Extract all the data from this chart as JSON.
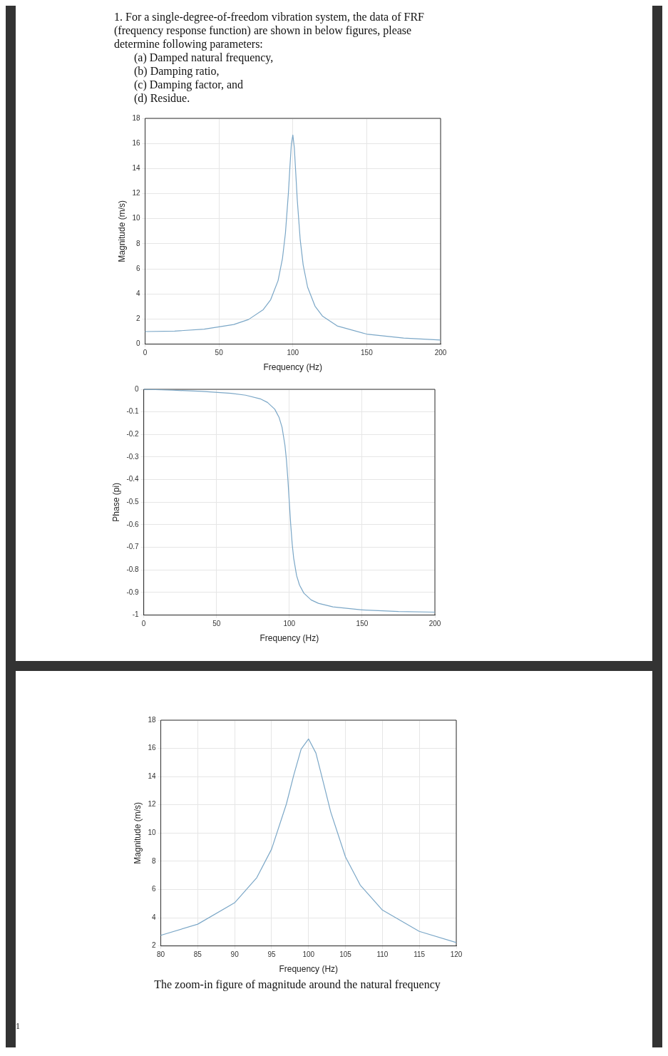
{
  "chart_data": [
    {
      "type": "line",
      "xlabel": "Frequency (Hz)",
      "ylabel": "Magnitude (m/s)",
      "annotations": [
        "1. For a single-degree-of-freedom vibration system, the data of FRF (frequency response function) are shown in below figures, please determine following parameters:",
        "(a) Damped natural frequency,",
        "(b) Damping ratio,",
        "(c) Damping factor, and",
        "(d) Residue."
      ],
      "x": [
        0,
        20,
        40,
        60,
        70,
        80,
        85,
        90,
        93,
        95,
        97,
        98,
        99,
        100,
        101,
        102,
        103,
        105,
        107,
        110,
        115,
        120,
        130,
        150,
        175,
        200
      ],
      "series": [
        {
          "color": "#7ba7c7",
          "values": [
            1,
            1.04,
            1.19,
            1.56,
            1.96,
            2.75,
            3.54,
            5.06,
            6.84,
            8.86,
            12.05,
            14.1,
            15.95,
            16.67,
            15.67,
            13.6,
            11.5,
            8.31,
            6.31,
            4.54,
            3.03,
            2.24,
            1.45,
            0.8,
            0.48,
            0.33
          ]
        }
      ],
      "xlim": [
        0,
        200
      ],
      "xticks": [
        0,
        50,
        100,
        150,
        200
      ],
      "ylim": [
        0,
        18
      ],
      "yticks": [
        0,
        2,
        4,
        6,
        8,
        10,
        12,
        14,
        16,
        18
      ],
      "grid": true,
      "legend": false,
      "marker": "none",
      "line_style": "solid"
    },
    {
      "type": "line",
      "xlabel": "Frequency (Hz)",
      "ylabel": "Phase (pi)",
      "x": [
        0,
        20,
        40,
        60,
        70,
        80,
        85,
        90,
        93,
        95,
        97,
        98,
        99,
        100,
        101,
        102,
        103,
        105,
        107,
        110,
        115,
        120,
        130,
        150,
        175,
        200
      ],
      "series": [
        {
          "color": "#7ba7c7",
          "values": [
            0,
            -0.004,
            -0.009,
            -0.018,
            -0.026,
            -0.042,
            -0.058,
            -0.088,
            -0.125,
            -0.168,
            -0.248,
            -0.311,
            -0.397,
            -0.5,
            -0.602,
            -0.686,
            -0.748,
            -0.825,
            -0.867,
            -0.903,
            -0.933,
            -0.948,
            -0.964,
            -0.977,
            -0.984,
            -0.987
          ]
        }
      ],
      "xlim": [
        0,
        200
      ],
      "xticks": [
        0,
        50,
        100,
        150,
        200
      ],
      "ylim": [
        -1,
        0
      ],
      "yticks": [
        -1,
        -0.9,
        -0.8,
        -0.7,
        -0.6,
        -0.5,
        -0.4,
        -0.3,
        -0.2,
        -0.1,
        0
      ],
      "grid": true,
      "legend": false,
      "marker": "none",
      "line_style": "solid"
    },
    {
      "type": "line",
      "xlabel": "Frequency (Hz)",
      "ylabel": "Magnitude (m/s)",
      "annotations": [
        "The zoom-in figure of magnitude around the natural frequency",
        "1"
      ],
      "x": [
        80,
        85,
        90,
        93,
        95,
        97,
        98,
        99,
        100,
        101,
        102,
        103,
        105,
        107,
        110,
        115,
        120
      ],
      "series": [
        {
          "color": "#7ba7c7",
          "values": [
            2.75,
            3.54,
            5.06,
            6.84,
            8.86,
            12.05,
            14.1,
            15.95,
            16.67,
            15.67,
            13.6,
            11.5,
            8.31,
            6.31,
            4.54,
            3.03,
            2.24
          ]
        }
      ],
      "xlim": [
        80,
        120
      ],
      "xticks": [
        80,
        85,
        90,
        95,
        100,
        105,
        110,
        115,
        120
      ],
      "ylim": [
        2,
        18
      ],
      "yticks": [
        2,
        4,
        6,
        8,
        10,
        12,
        14,
        16,
        18
      ],
      "grid": true,
      "legend": false,
      "marker": "none",
      "line_style": "solid"
    }
  ]
}
